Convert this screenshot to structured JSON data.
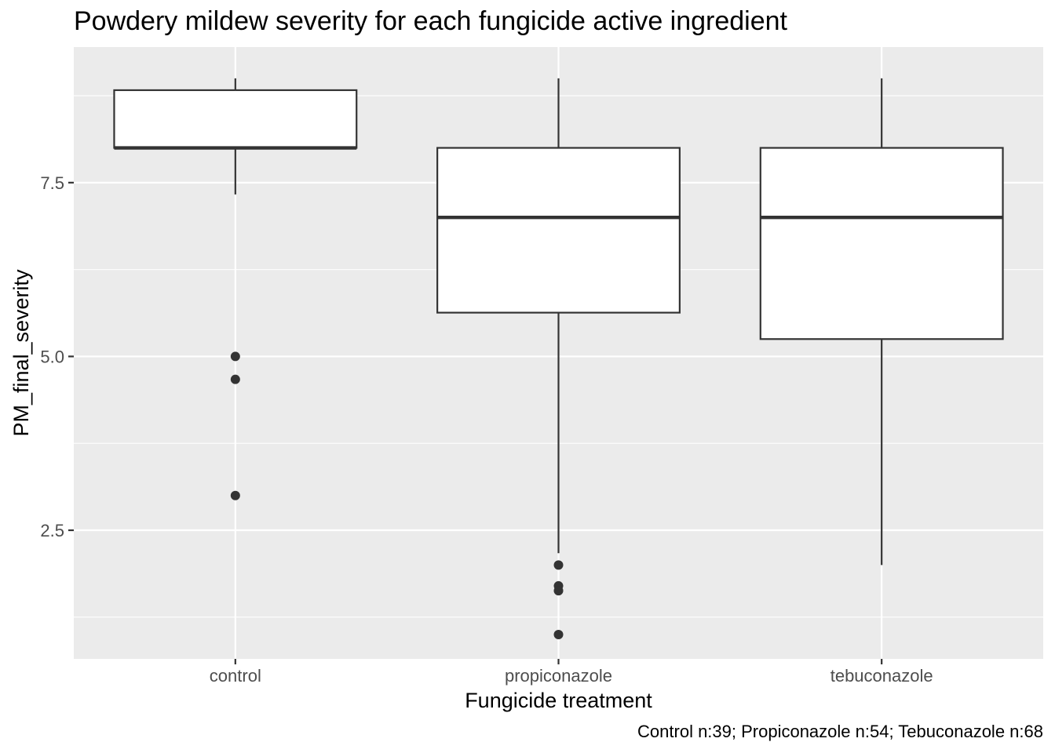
{
  "chart_data": {
    "type": "box",
    "title": "Powdery mildew severity for each fungicide active ingredient",
    "xlabel": "Fungicide treatment",
    "ylabel": "PM_final_severity",
    "caption": "Control n:39; Propiconazole n:54; Tebuconazole n:68",
    "ylim": [
      0.65,
      9.45
    ],
    "y_ticks": [
      2.5,
      5.0,
      7.5
    ],
    "y_tick_labels": [
      "2.5",
      "5.0",
      "7.5"
    ],
    "y_minor_ticks": [
      1.25,
      3.75,
      6.25,
      8.75
    ],
    "categories": [
      "control",
      "propiconazole",
      "tebuconazole"
    ],
    "boxes": [
      {
        "category": "control",
        "min": 7.33,
        "q1": 8.0,
        "median": 8.0,
        "q3": 8.83,
        "max": 9.0,
        "outliers": [
          5.0,
          4.67,
          3.0
        ]
      },
      {
        "category": "propiconazole",
        "min": 2.17,
        "q1": 5.63,
        "median": 7.0,
        "q3": 8.0,
        "max": 9.0,
        "outliers": [
          2.0,
          1.7,
          1.63,
          1.0
        ]
      },
      {
        "category": "tebuconazole",
        "min": 2.0,
        "q1": 5.25,
        "median": 7.0,
        "q3": 8.0,
        "max": 9.0,
        "outliers": []
      }
    ],
    "grid": true,
    "colors": {
      "panel": "#ebebeb",
      "grid": "#ffffff",
      "box_fill": "#ffffff",
      "box_line": "#333333",
      "point": "#333333",
      "tick_text": "#4d4d4d"
    }
  }
}
